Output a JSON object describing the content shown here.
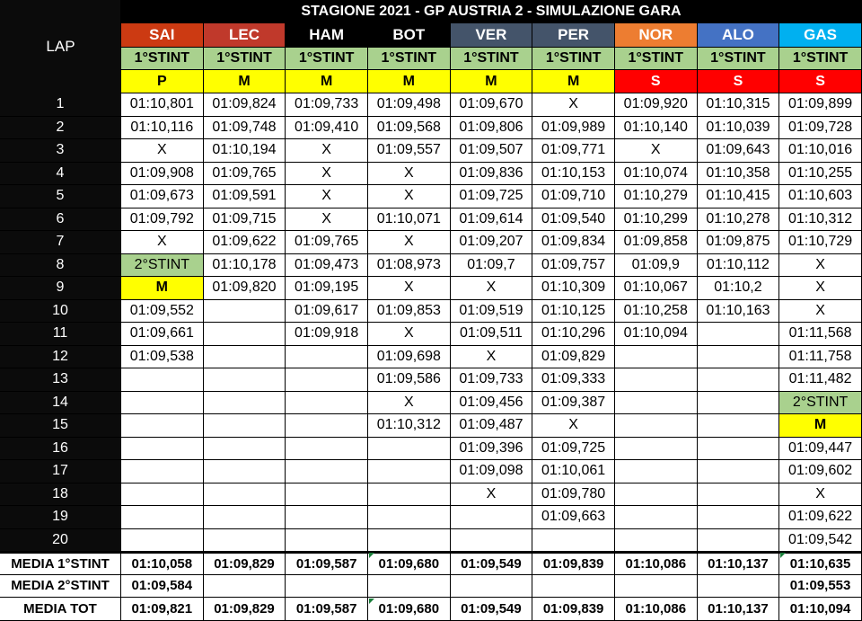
{
  "title": "STAGIONE 2021 - GP AUSTRIA 2 - SIMULAZIONE GARA",
  "lap_header": "LAP",
  "drivers": [
    {
      "code": "SAI",
      "color": "#cc3a12",
      "text": "#ffffff",
      "stint": "1°STINT",
      "tyre": "P",
      "tyre_bg": "#ffff00",
      "tyre_fg": "#000000"
    },
    {
      "code": "LEC",
      "color": "#c0392b",
      "text": "#ffffff",
      "stint": "1°STINT",
      "tyre": "M",
      "tyre_bg": "#ffff00",
      "tyre_fg": "#000000"
    },
    {
      "code": "HAM",
      "color": "#000000",
      "text": "#ffffff",
      "stint": "1°STINT",
      "tyre": "M",
      "tyre_bg": "#ffff00",
      "tyre_fg": "#000000"
    },
    {
      "code": "BOT",
      "color": "#000000",
      "text": "#ffffff",
      "stint": "1°STINT",
      "tyre": "M",
      "tyre_bg": "#ffff00",
      "tyre_fg": "#000000"
    },
    {
      "code": "VER",
      "color": "#44546a",
      "text": "#ffffff",
      "stint": "1°STINT",
      "tyre": "M",
      "tyre_bg": "#ffff00",
      "tyre_fg": "#000000"
    },
    {
      "code": "PER",
      "color": "#44546a",
      "text": "#ffffff",
      "stint": "1°STINT",
      "tyre": "M",
      "tyre_bg": "#ffff00",
      "tyre_fg": "#000000"
    },
    {
      "code": "NOR",
      "color": "#ed7d31",
      "text": "#ffffff",
      "stint": "1°STINT",
      "tyre": "S",
      "tyre_bg": "#ff0000",
      "tyre_fg": "#ffffff"
    },
    {
      "code": "ALO",
      "color": "#4472c4",
      "text": "#ffffff",
      "stint": "1°STINT",
      "tyre": "S",
      "tyre_bg": "#ff0000",
      "tyre_fg": "#ffffff"
    },
    {
      "code": "GAS",
      "color": "#00b0f0",
      "text": "#ffffff",
      "stint": "1°STINT",
      "tyre": "S",
      "tyre_bg": "#ff0000",
      "tyre_fg": "#ffffff"
    }
  ],
  "laps": [
    {
      "lap": "1",
      "cells": [
        "01:10,801",
        "01:09,824",
        "01:09,733",
        "01:09,498",
        "01:09,670",
        "X",
        "01:09,920",
        "01:10,315",
        "01:09,899"
      ]
    },
    {
      "lap": "2",
      "cells": [
        "01:10,116",
        "01:09,748",
        "01:09,410",
        "01:09,568",
        "01:09,806",
        "01:09,989",
        "01:10,140",
        "01:10,039",
        "01:09,728"
      ]
    },
    {
      "lap": "3",
      "cells": [
        "X",
        "01:10,194",
        "X",
        "01:09,557",
        "01:09,507",
        "01:09,771",
        "X",
        "01:09,643",
        "01:10,016"
      ]
    },
    {
      "lap": "4",
      "cells": [
        "01:09,908",
        "01:09,765",
        "X",
        "X",
        "01:09,836",
        "01:10,153",
        "01:10,074",
        "01:10,358",
        "01:10,255"
      ]
    },
    {
      "lap": "5",
      "cells": [
        "01:09,673",
        "01:09,591",
        "X",
        "X",
        "01:09,725",
        "01:09,710",
        "01:10,279",
        "01:10,415",
        "01:10,603"
      ]
    },
    {
      "lap": "6",
      "cells": [
        "01:09,792",
        "01:09,715",
        "X",
        "01:10,071",
        "01:09,614",
        "01:09,540",
        "01:10,299",
        "01:10,278",
        "01:10,312"
      ]
    },
    {
      "lap": "7",
      "cells": [
        "X",
        "01:09,622",
        "01:09,765",
        "X",
        "01:09,207",
        "01:09,834",
        "01:09,858",
        "01:09,875",
        "01:10,729"
      ]
    },
    {
      "lap": "8",
      "cells": [
        "2°STINT",
        "01:10,178",
        "01:09,473",
        "01:08,973",
        "01:09,7",
        "01:09,757",
        "01:09,9",
        "01:10,112",
        "X"
      ]
    },
    {
      "lap": "9",
      "cells": [
        "M",
        "01:09,820",
        "01:09,195",
        "X",
        "X",
        "01:10,309",
        "01:10,067",
        "01:10,2",
        "X"
      ]
    },
    {
      "lap": "10",
      "cells": [
        "01:09,552",
        "",
        "01:09,617",
        "01:09,853",
        "01:09,519",
        "01:10,125",
        "01:10,258",
        "01:10,163",
        "X"
      ]
    },
    {
      "lap": "11",
      "cells": [
        "01:09,661",
        "",
        "01:09,918",
        "X",
        "01:09,511",
        "01:10,296",
        "01:10,094",
        "",
        "01:11,568"
      ]
    },
    {
      "lap": "12",
      "cells": [
        "01:09,538",
        "",
        "",
        "01:09,698",
        "X",
        "01:09,829",
        "",
        "",
        "01:11,758"
      ]
    },
    {
      "lap": "13",
      "cells": [
        "",
        "",
        "",
        "01:09,586",
        "01:09,733",
        "01:09,333",
        "",
        "",
        "01:11,482"
      ]
    },
    {
      "lap": "14",
      "cells": [
        "",
        "",
        "",
        "X",
        "01:09,456",
        "01:09,387",
        "",
        "",
        "2°STINT"
      ]
    },
    {
      "lap": "15",
      "cells": [
        "",
        "",
        "",
        "01:10,312",
        "01:09,487",
        "X",
        "",
        "",
        "M"
      ]
    },
    {
      "lap": "16",
      "cells": [
        "",
        "",
        "",
        "",
        "01:09,396",
        "01:09,725",
        "",
        "",
        "01:09,447"
      ]
    },
    {
      "lap": "17",
      "cells": [
        "",
        "",
        "",
        "",
        "01:09,098",
        "01:10,061",
        "",
        "",
        "01:09,602"
      ]
    },
    {
      "lap": "18",
      "cells": [
        "",
        "",
        "",
        "",
        "X",
        "01:09,780",
        "",
        "",
        "X"
      ]
    },
    {
      "lap": "19",
      "cells": [
        "",
        "",
        "",
        "",
        "",
        "01:09,663",
        "",
        "",
        "01:09,622"
      ]
    },
    {
      "lap": "20",
      "cells": [
        "",
        "",
        "",
        "",
        "",
        "",
        "",
        "",
        "01:09,542"
      ]
    }
  ],
  "summary": [
    {
      "label": "MEDIA 1°STINT",
      "cells": [
        "01:10,058",
        "01:09,829",
        "01:09,587",
        "01:09,680",
        "01:09,549",
        "01:09,839",
        "01:10,086",
        "01:10,137",
        "01:10,635"
      ]
    },
    {
      "label": "MEDIA 2°STINT",
      "cells": [
        "01:09,584",
        "",
        "",
        "",
        "",
        "",
        "",
        "",
        "01:09,553"
      ]
    },
    {
      "label": "MEDIA TOT",
      "cells": [
        "01:09,821",
        "01:09,829",
        "01:09,587",
        "01:09,680",
        "01:09,549",
        "01:09,839",
        "01:10,086",
        "01:10,137",
        "01:10,094"
      ]
    }
  ],
  "colors": {
    "stint_green": "#a9d18e",
    "medium_yellow": "#ffff00",
    "soft_red": "#ff0000",
    "indicator_green": "#1a7f3a"
  }
}
